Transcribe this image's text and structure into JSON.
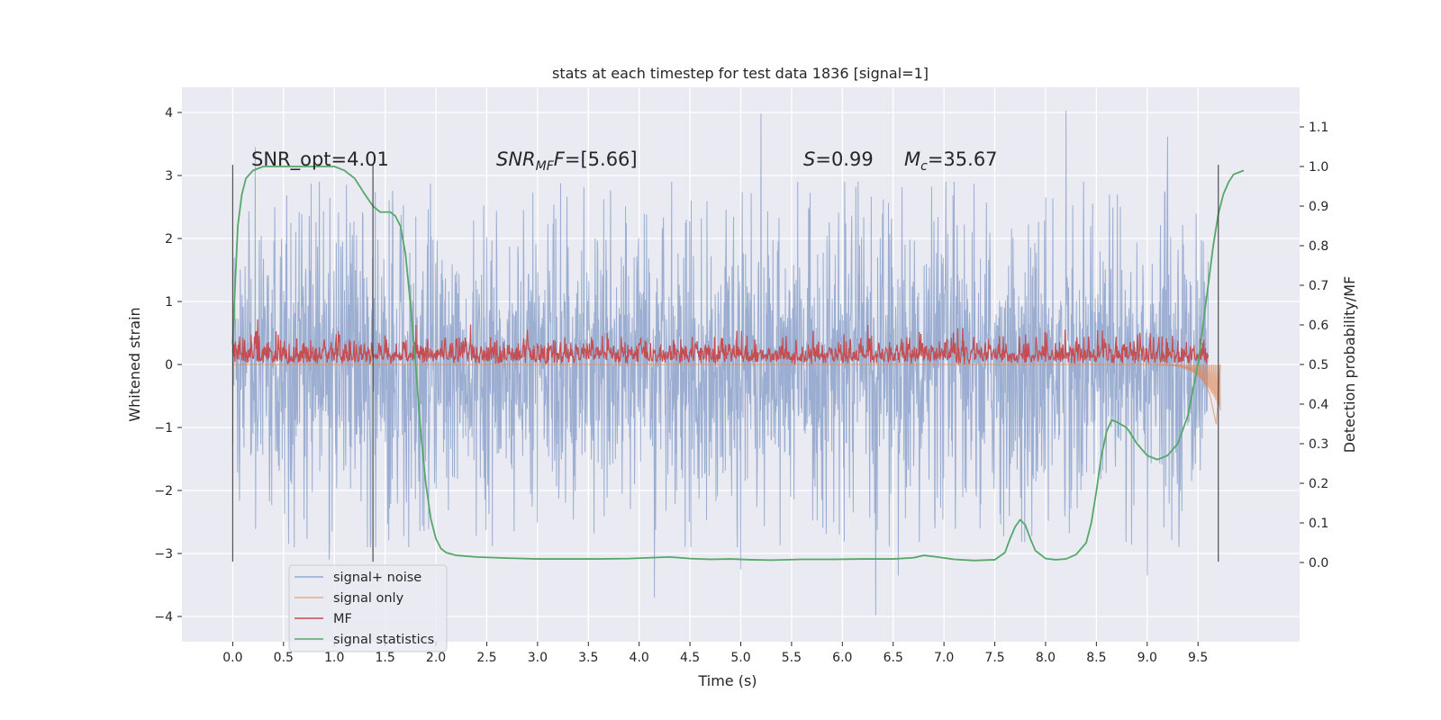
{
  "chart_data": {
    "type": "line",
    "title": "stats at each timestep for test data 1836 [signal=1]",
    "xlabel": "Time (s)",
    "ylabel": "Whitened strain",
    "y2label": "Detection probability/MF",
    "xlim": [
      -0.5,
      10.5
    ],
    "ylim": [
      -4.4,
      4.4
    ],
    "y2lim": [
      -0.2,
      1.2
    ],
    "xticks": [
      "0.0",
      "0.5",
      "1.0",
      "1.5",
      "2.0",
      "2.5",
      "3.0",
      "3.5",
      "4.0",
      "4.5",
      "5.0",
      "5.5",
      "6.0",
      "6.5",
      "7.0",
      "7.5",
      "8.0",
      "8.5",
      "9.0",
      "9.5"
    ],
    "yticks": [
      "4",
      "3",
      "2",
      "1",
      "0",
      "−1",
      "−2",
      "−3",
      "−4"
    ],
    "y2ticks": [
      "1.1",
      "1.0",
      "0.9",
      "0.8",
      "0.7",
      "0.6",
      "0.5",
      "0.4",
      "0.3",
      "0.2",
      "0.1",
      "0.0"
    ],
    "grid": true,
    "legend_position": "lower-left",
    "annotations": {
      "snr_opt": "SNR_opt=4.01",
      "snr_mf_prefix": "SNR",
      "snr_mf_sub": "MF",
      "snr_mf_suffix": "=[5.66]",
      "s_prefix": "S",
      "s_suffix": "=0.99",
      "mc_prefix": "M",
      "mc_sub": "c",
      "mc_suffix": "=35.67"
    },
    "vlines_x": [
      0.0,
      1.38,
      9.7
    ],
    "series": [
      {
        "name": "signal+ noise",
        "color": "#4c72b0",
        "description_range": [
          -4.0,
          4.05
        ],
        "noise_band_approx": [
          -1.3,
          1.3
        ],
        "x_range": [
          0.0,
          9.6
        ],
        "peaks": [
          [
            0.22,
            3.45
          ],
          [
            0.95,
            -3.1
          ],
          [
            5.2,
            3.98
          ],
          [
            6.33,
            -3.98
          ],
          [
            8.2,
            4.03
          ],
          [
            9.2,
            3.62
          ],
          [
            4.15,
            -3.7
          ],
          [
            5.0,
            -3.25
          ],
          [
            9.0,
            -3.35
          ],
          [
            6.55,
            -3.35
          ]
        ]
      },
      {
        "name": "signal only",
        "color": "#dd8452",
        "x": [
          0.0,
          9.0,
          9.3,
          9.45,
          9.55,
          9.62,
          9.68,
          9.72
        ],
        "y": [
          0.0,
          0.0,
          -0.02,
          -0.08,
          -0.2,
          -0.5,
          -0.95,
          0.0
        ]
      },
      {
        "name": "MF",
        "color": "#c44e52",
        "y2_band_approx": [
          0.5,
          0.57
        ],
        "x_range": [
          0.0,
          9.6
        ],
        "peaks": [
          [
            1.8,
            0.6
          ],
          [
            6.25,
            0.6
          ],
          [
            9.65,
            0.64
          ]
        ]
      },
      {
        "name": "signal statistics",
        "color": "#55a868",
        "x": [
          0.0,
          0.02,
          0.05,
          0.09,
          0.13,
          0.2,
          0.3,
          0.5,
          0.8,
          1.0,
          1.1,
          1.2,
          1.3,
          1.38,
          1.45,
          1.55,
          1.6,
          1.65,
          1.7,
          1.75,
          1.8,
          1.85,
          1.9,
          1.95,
          2.0,
          2.05,
          2.1,
          2.2,
          2.4,
          2.7,
          3.0,
          3.3,
          3.6,
          3.9,
          4.1,
          4.3,
          4.5,
          4.7,
          4.9,
          5.1,
          5.3,
          5.6,
          5.9,
          6.2,
          6.5,
          6.7,
          6.8,
          6.9,
          7.1,
          7.3,
          7.5,
          7.6,
          7.65,
          7.7,
          7.75,
          7.8,
          7.85,
          7.9,
          8.0,
          8.1,
          8.2,
          8.3,
          8.4,
          8.45,
          8.5,
          8.55,
          8.6,
          8.65,
          8.7,
          8.8,
          8.9,
          9.0,
          9.1,
          9.2,
          9.3,
          9.4,
          9.5,
          9.55,
          9.6,
          9.65,
          9.7,
          9.75,
          9.8,
          9.85,
          9.9,
          9.95
        ],
        "y": [
          0.55,
          0.68,
          0.85,
          0.93,
          0.97,
          0.99,
          1.0,
          1.0,
          1.0,
          1.0,
          0.99,
          0.97,
          0.93,
          0.9,
          0.885,
          0.885,
          0.875,
          0.85,
          0.78,
          0.65,
          0.5,
          0.33,
          0.2,
          0.11,
          0.06,
          0.035,
          0.025,
          0.018,
          0.014,
          0.011,
          0.009,
          0.009,
          0.009,
          0.01,
          0.012,
          0.014,
          0.01,
          0.008,
          0.009,
          0.007,
          0.006,
          0.008,
          0.008,
          0.009,
          0.009,
          0.012,
          0.018,
          0.015,
          0.008,
          0.005,
          0.007,
          0.025,
          0.06,
          0.09,
          0.108,
          0.095,
          0.06,
          0.03,
          0.01,
          0.007,
          0.009,
          0.02,
          0.05,
          0.1,
          0.18,
          0.27,
          0.33,
          0.36,
          0.355,
          0.34,
          0.3,
          0.27,
          0.26,
          0.27,
          0.3,
          0.37,
          0.5,
          0.6,
          0.7,
          0.8,
          0.88,
          0.93,
          0.96,
          0.98,
          0.985,
          0.99
        ]
      }
    ]
  }
}
